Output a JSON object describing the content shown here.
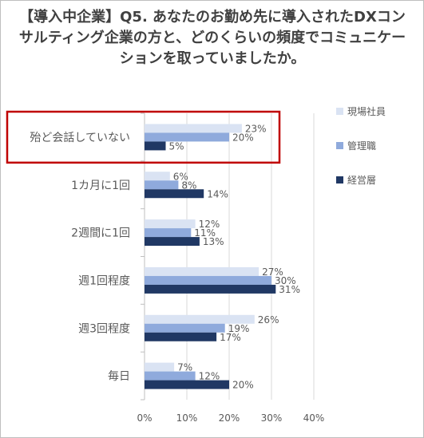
{
  "chart_data": {
    "type": "bar",
    "orientation": "horizontal",
    "title": "【導入中企業】Q5. あなたのお勤め先に導入されたDXコンサルティング企業の方と、どのくらいの頻度でコミュニケーションを取っていましたか。",
    "categories": [
      "殆ど会話していない",
      "1カ月に1回",
      "2週間に1回",
      "週1回程度",
      "週3回程度",
      "毎日"
    ],
    "series": [
      {
        "name": "現場社員",
        "color": "#dae3f3",
        "values": [
          23,
          6,
          12,
          27,
          26,
          7
        ]
      },
      {
        "name": "管理職",
        "color": "#8faadc",
        "values": [
          20,
          8,
          11,
          30,
          19,
          12
        ]
      },
      {
        "name": "経営層",
        "color": "#203864",
        "values": [
          5,
          14,
          13,
          31,
          17,
          20
        ]
      }
    ],
    "xlim": [
      0,
      40
    ],
    "x_ticks": [
      "0%",
      "10%",
      "20%",
      "30%",
      "40%"
    ],
    "value_suffix": "%",
    "legend_position": "right",
    "grid": true,
    "highlight_category": "殆ど会話していない",
    "highlight_color": "#c00000"
  }
}
